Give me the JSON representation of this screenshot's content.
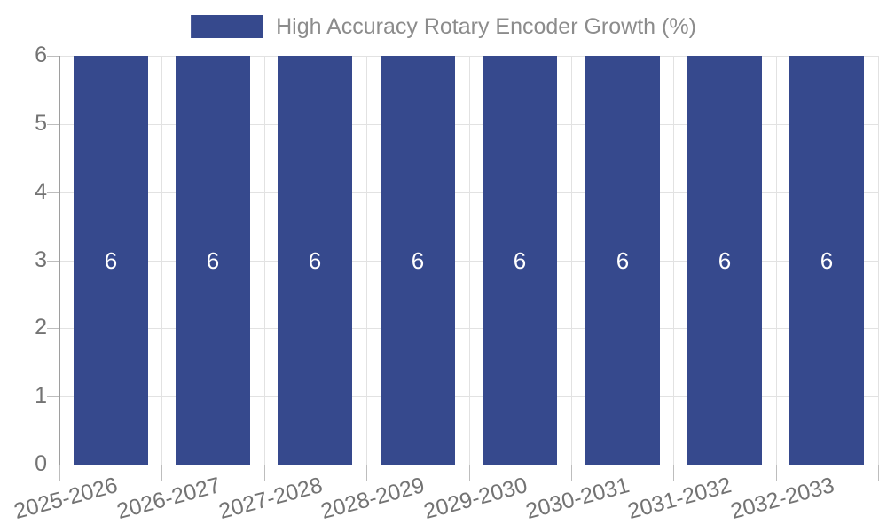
{
  "legend": {
    "label": "High Accuracy Rotary Encoder Growth (%)"
  },
  "chart_data": {
    "type": "bar",
    "title": "High Accuracy Rotary Encoder Growth (%)",
    "categories": [
      "2025-2026",
      "2026-2027",
      "2027-2028",
      "2028-2029",
      "2029-2030",
      "2030-2031",
      "2031-2032",
      "2032-2033"
    ],
    "series": [
      {
        "name": "High Accuracy Rotary Encoder Growth (%)",
        "values": [
          6,
          6,
          6,
          6,
          6,
          6,
          6,
          6
        ]
      }
    ],
    "bar_labels": [
      "6",
      "6",
      "6",
      "6",
      "6",
      "6",
      "6",
      "6"
    ],
    "xlabel": "",
    "ylabel": "",
    "ylim": [
      0,
      6
    ],
    "yticks": [
      0,
      1,
      2,
      3,
      4,
      5,
      6
    ],
    "x_label_rotation_deg": -15,
    "grid": true,
    "legend_position": "top-center"
  },
  "colors": {
    "bar": "#36498D",
    "bar_label": "#FFFFFF",
    "axis_text": "#737373",
    "legend_text": "#8C8C8C",
    "grid_line": "#E2E2E2",
    "axis_line": "#9E9E9E",
    "tick": "#BDBDBD",
    "background": "#FFFFFF"
  }
}
